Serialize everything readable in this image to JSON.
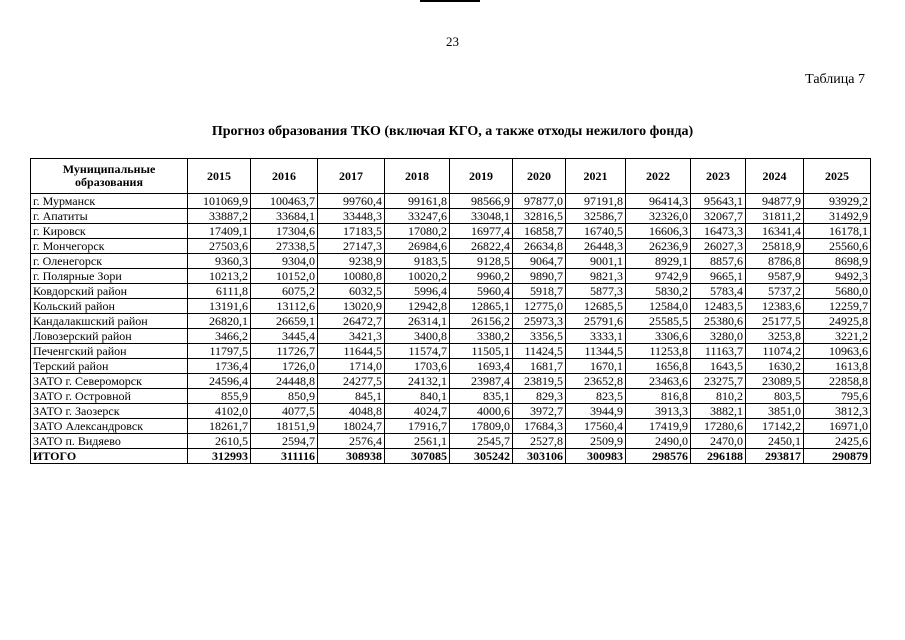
{
  "page_number": "23",
  "table_label": "Таблица 7",
  "title": "Прогноз образования ТКО (включая КГО, а также отходы нежилого фонда)",
  "table": {
    "header": [
      "Муниципальные образования",
      "2015",
      "2016",
      "2017",
      "2018",
      "2019",
      "2020",
      "2021",
      "2022",
      "2023",
      "2024",
      "2025"
    ],
    "rows": [
      [
        "г. Мурманск",
        "101069,9",
        "100463,7",
        "99760,4",
        "99161,8",
        "98566,9",
        "97877,0",
        "97191,8",
        "96414,3",
        "95643,1",
        "94877,9",
        "93929,2"
      ],
      [
        "г. Апатиты",
        "33887,2",
        "33684,1",
        "33448,3",
        "33247,6",
        "33048,1",
        "32816,5",
        "32586,7",
        "32326,0",
        "32067,7",
        "31811,2",
        "31492,9"
      ],
      [
        "г. Кировск",
        "17409,1",
        "17304,6",
        "17183,5",
        "17080,2",
        "16977,4",
        "16858,7",
        "16740,5",
        "16606,3",
        "16473,3",
        "16341,4",
        "16178,1"
      ],
      [
        "г. Мончегорск",
        "27503,6",
        "27338,5",
        "27147,3",
        "26984,6",
        "26822,4",
        "26634,8",
        "26448,3",
        "26236,9",
        "26027,3",
        "25818,9",
        "25560,6"
      ],
      [
        "г. Оленегорск",
        "9360,3",
        "9304,0",
        "9238,9",
        "9183,5",
        "9128,5",
        "9064,7",
        "9001,1",
        "8929,1",
        "8857,6",
        "8786,8",
        "8698,9"
      ],
      [
        "г. Полярные Зори",
        "10213,2",
        "10152,0",
        "10080,8",
        "10020,2",
        "9960,2",
        "9890,7",
        "9821,3",
        "9742,9",
        "9665,1",
        "9587,9",
        "9492,3"
      ],
      [
        "Ковдорский район",
        "6111,8",
        "6075,2",
        "6032,5",
        "5996,4",
        "5960,4",
        "5918,7",
        "5877,3",
        "5830,2",
        "5783,4",
        "5737,2",
        "5680,0"
      ],
      [
        "Кольский район",
        "13191,6",
        "13112,6",
        "13020,9",
        "12942,8",
        "12865,1",
        "12775,0",
        "12685,5",
        "12584,0",
        "12483,5",
        "12383,6",
        "12259,7"
      ],
      [
        "Кандалакшский район",
        "26820,1",
        "26659,1",
        "26472,7",
        "26314,1",
        "26156,2",
        "25973,3",
        "25791,6",
        "25585,5",
        "25380,6",
        "25177,5",
        "24925,8"
      ],
      [
        "Ловозерский район",
        "3466,2",
        "3445,4",
        "3421,3",
        "3400,8",
        "3380,2",
        "3356,5",
        "3333,1",
        "3306,6",
        "3280,0",
        "3253,8",
        "3221,2"
      ],
      [
        "Печенгский район",
        "11797,5",
        "11726,7",
        "11644,5",
        "11574,7",
        "11505,1",
        "11424,5",
        "11344,5",
        "11253,8",
        "11163,7",
        "11074,2",
        "10963,6"
      ],
      [
        "Терский район",
        "1736,4",
        "1726,0",
        "1714,0",
        "1703,6",
        "1693,4",
        "1681,7",
        "1670,1",
        "1656,8",
        "1643,5",
        "1630,2",
        "1613,8"
      ],
      [
        "ЗАТО г. Североморск",
        "24596,4",
        "24448,8",
        "24277,5",
        "24132,1",
        "23987,4",
        "23819,5",
        "23652,8",
        "23463,6",
        "23275,7",
        "23089,5",
        "22858,8"
      ],
      [
        "ЗАТО г. Островной",
        "855,9",
        "850,9",
        "845,1",
        "840,1",
        "835,1",
        "829,3",
        "823,5",
        "816,8",
        "810,2",
        "803,5",
        "795,6"
      ],
      [
        "ЗАТО г. Заозерск",
        "4102,0",
        "4077,5",
        "4048,8",
        "4024,7",
        "4000,6",
        "3972,7",
        "3944,9",
        "3913,3",
        "3882,1",
        "3851,0",
        "3812,3"
      ],
      [
        "ЗАТО Александровск",
        "18261,7",
        "18151,9",
        "18024,7",
        "17916,7",
        "17809,0",
        "17684,3",
        "17560,4",
        "17419,9",
        "17280,6",
        "17142,2",
        "16971,0"
      ],
      [
        "ЗАТО п. Видяево",
        "2610,5",
        "2594,7",
        "2576,4",
        "2561,1",
        "2545,7",
        "2527,8",
        "2509,9",
        "2490,0",
        "2470,0",
        "2450,1",
        "2425,6"
      ],
      [
        "ИТОГО",
        "312993",
        "311116",
        "308938",
        "307085",
        "305242",
        "303106",
        "300983",
        "298576",
        "296188",
        "293817",
        "290879"
      ]
    ]
  }
}
